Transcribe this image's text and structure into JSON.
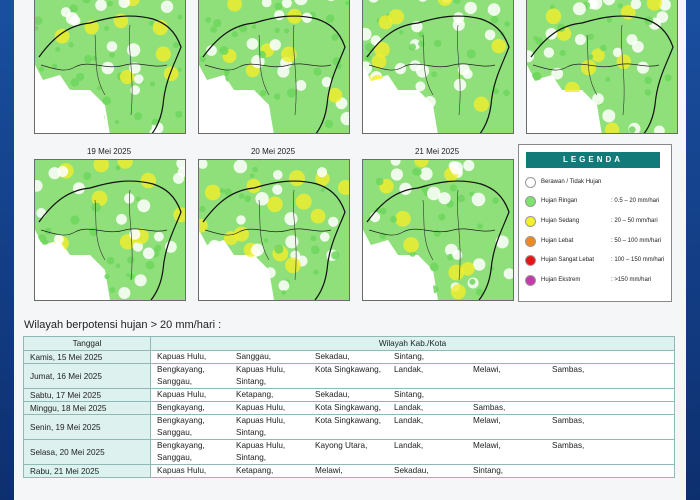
{
  "maps": {
    "dates": [
      "19 Mei 2025",
      "20 Mei 2025",
      "21 Mei 2025"
    ]
  },
  "legend": {
    "title": "LEGENDA",
    "items": [
      {
        "label": "Berawan / Tidak Hujan",
        "range": "",
        "color": "#ffffff"
      },
      {
        "label": "Hujan Ringan",
        "range": ": 0.5 – 20 mm/hari",
        "color": "#7ee36e"
      },
      {
        "label": "Hujan Sedang",
        "range": ": 20 – 50 mm/hari",
        "color": "#f3f02a"
      },
      {
        "label": "Hujan Lebat",
        "range": ": 50 – 100 mm/hari",
        "color": "#f08a20"
      },
      {
        "label": "Hujan Sangat Lebat",
        "range": ": 100 – 150 mm/hari",
        "color": "#e31515"
      },
      {
        "label": "Hujan Ekstrem",
        "range": ": >150 mm/hari",
        "color": "#c43aa8"
      }
    ]
  },
  "section_title": "Wilayah berpotensi hujan > 20 mm/hari :",
  "table": {
    "headers": [
      "Tanggal",
      "Wilayah Kab./Kota"
    ],
    "rows": [
      {
        "date": "Kamis, 15 Mei 2025",
        "regions": [
          "Kapuas Hulu,",
          "Sanggau,",
          "Sekadau,",
          "Sintang,"
        ]
      },
      {
        "date": "Jumat, 16 Mei 2025",
        "regions": [
          "Bengkayang,",
          "Kapuas Hulu,",
          "Kota Singkawang,",
          "Landak,",
          "Melawi,",
          "Sambas,",
          "Sanggau,",
          "Sintang,"
        ]
      },
      {
        "date": "Sabtu, 17 Mei 2025",
        "regions": [
          "Kapuas Hulu,",
          "Ketapang,",
          "Sekadau,",
          "Sintang,"
        ]
      },
      {
        "date": "Minggu, 18 Mei 2025",
        "regions": [
          "Bengkayang,",
          "Kapuas Hulu,",
          "Kota Singkawang,",
          "Landak,",
          "Sambas,"
        ]
      },
      {
        "date": "Senin, 19 Mei 2025",
        "regions": [
          "Bengkayang,",
          "Kapuas Hulu,",
          "Kota Singkawang,",
          "Landak,",
          "Melawi,",
          "Sambas,",
          "Sanggau,",
          "Sintang,"
        ]
      },
      {
        "date": "Selasa, 20 Mei 2025",
        "regions": [
          "Bengkayang,",
          "Kapuas Hulu,",
          "Kayong Utara,",
          "Landak,",
          "Melawi,",
          "Sambas,",
          "Sanggau,",
          "Sintang,"
        ]
      },
      {
        "date": "Rabu, 21 Mei 2025",
        "regions": [
          "Kapuas Hulu,",
          "Ketapang,",
          "Melawi,",
          "Sekadau,",
          "Sintang,"
        ]
      }
    ]
  }
}
